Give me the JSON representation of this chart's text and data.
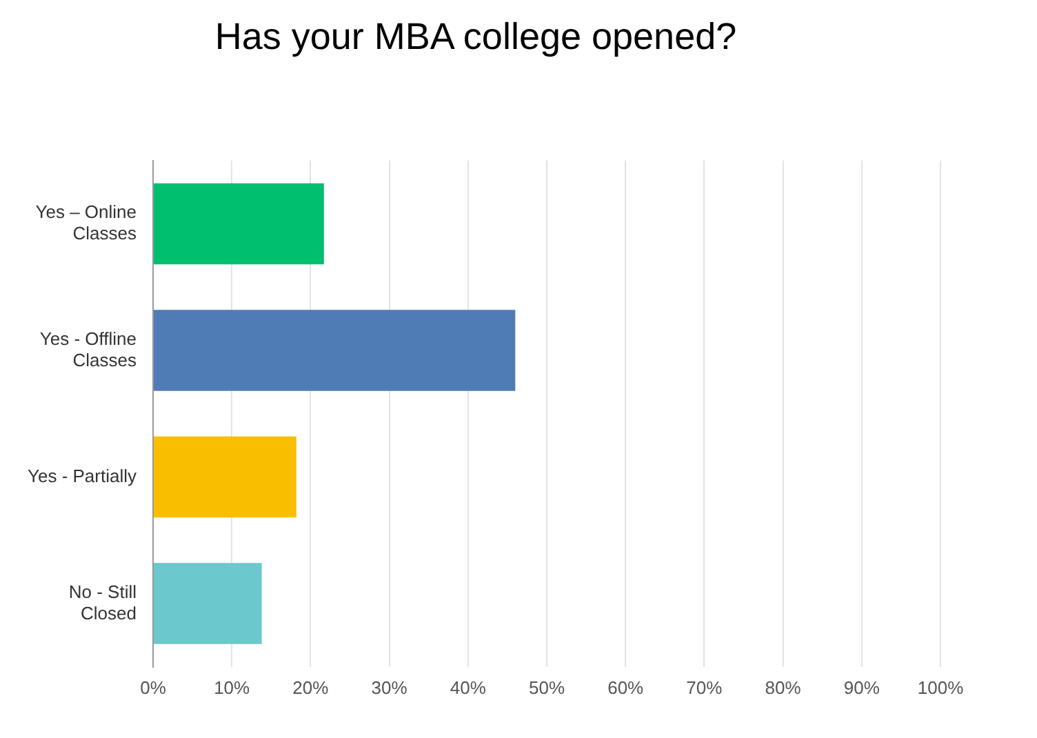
{
  "chart_data": {
    "type": "bar",
    "orientation": "horizontal",
    "title": "Has your MBA college opened?",
    "categories": [
      "Yes – Online Classes",
      "Yes - Offline Classes",
      "Yes - Partially",
      "No - Still Closed"
    ],
    "values": [
      21.7,
      46.0,
      18.2,
      13.8
    ],
    "colors": [
      "#00bf6f",
      "#507cb6",
      "#f9be00",
      "#6bc8cd"
    ],
    "xlim": [
      0,
      100
    ],
    "xticks": [
      {
        "value": 0,
        "label": "0%"
      },
      {
        "value": 10,
        "label": "10%"
      },
      {
        "value": 20,
        "label": "20%"
      },
      {
        "value": 30,
        "label": "30%"
      },
      {
        "value": 40,
        "label": "40%"
      },
      {
        "value": 50,
        "label": "50%"
      },
      {
        "value": 60,
        "label": "60%"
      },
      {
        "value": 70,
        "label": "70%"
      },
      {
        "value": 80,
        "label": "80%"
      },
      {
        "value": 90,
        "label": "90%"
      },
      {
        "value": 100,
        "label": "100%"
      }
    ],
    "grid": "x",
    "legend": false
  }
}
